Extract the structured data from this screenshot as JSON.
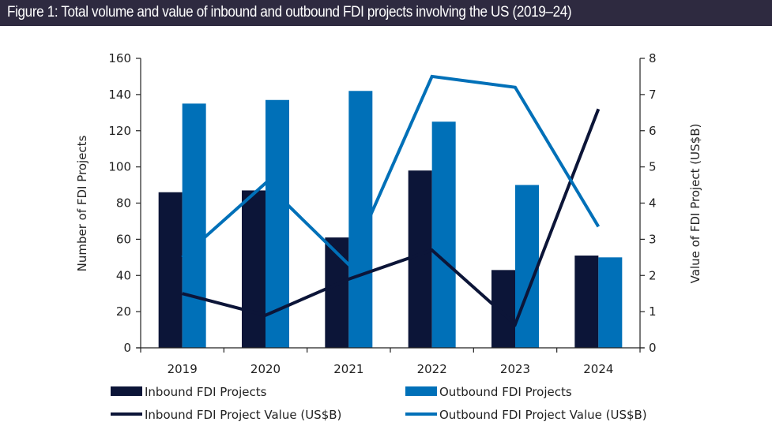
{
  "header": {
    "title": "Figure 1: Total volume and value of inbound and outbound FDI projects involving the US (2019–24)"
  },
  "colors": {
    "header_bg": "#2e2a40",
    "inbound": "#0c1538",
    "outbound": "#0070b8",
    "axis": "#222222"
  },
  "chart_data": {
    "type": "bar",
    "title": "Figure 1: Total volume and value of inbound and outbound FDI projects involving the US (2019–24)",
    "categories": [
      "2019",
      "2020",
      "2021",
      "2022",
      "2023",
      "2024"
    ],
    "xlabel": "",
    "ylabel": "Number  of FDI Projects",
    "y2label": "Value of FDI Project (US$B)",
    "ylim": [
      0,
      160
    ],
    "y2lim": [
      0,
      8
    ],
    "yticks": [
      0,
      20,
      40,
      60,
      80,
      100,
      120,
      140,
      160
    ],
    "y2ticks": [
      0,
      1,
      2,
      3,
      4,
      5,
      6,
      7,
      8
    ],
    "grid": false,
    "legend_position": "bottom",
    "series": [
      {
        "name": "Inbound FDI Projects",
        "type": "bar",
        "axis": "left",
        "color": "#0c1538",
        "values": [
          86,
          87,
          61,
          98,
          43,
          51
        ]
      },
      {
        "name": "Outbound FDI Projects",
        "type": "bar",
        "axis": "left",
        "color": "#0070b8",
        "values": [
          135,
          137,
          142,
          125,
          90,
          50
        ]
      },
      {
        "name": "Inbound FDI Project Value (US$B)",
        "type": "line",
        "axis": "right",
        "color": "#0c1538",
        "values": [
          1.5,
          0.9,
          1.9,
          2.7,
          0.65,
          6.6
        ]
      },
      {
        "name": "Outbound FDI Project Value (US$B)",
        "type": "line",
        "axis": "right",
        "color": "#0070b8",
        "values": [
          2.5,
          4.55,
          2.3,
          7.5,
          7.2,
          3.35
        ]
      }
    ]
  }
}
